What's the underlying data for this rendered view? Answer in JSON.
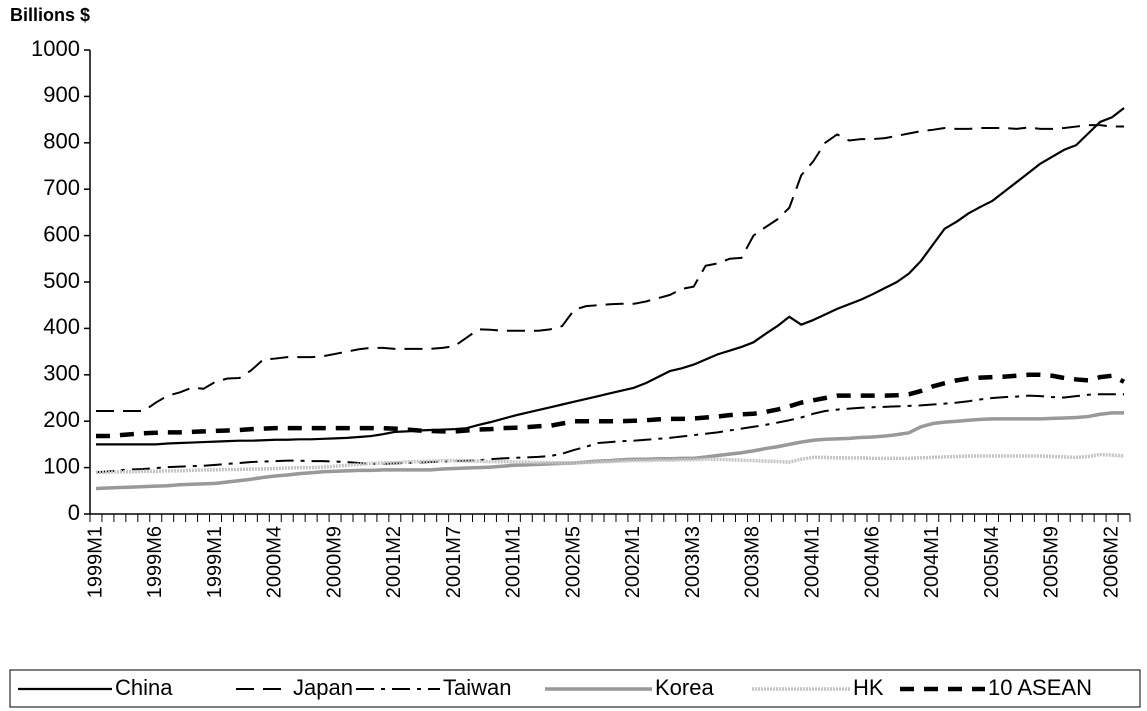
{
  "chart_data": {
    "type": "line",
    "y_axis_label": "Billions $",
    "categories": [
      "1999M1",
      null,
      null,
      null,
      null,
      "1999M6",
      null,
      null,
      null,
      null,
      "1999M1",
      null,
      null,
      null,
      null,
      "2000M4",
      null,
      null,
      null,
      null,
      "2000M9",
      null,
      null,
      null,
      null,
      "2001M2",
      null,
      null,
      null,
      null,
      "2001M7",
      null,
      null,
      null,
      null,
      "2001M1",
      null,
      null,
      null,
      null,
      "2002M5",
      null,
      null,
      null,
      null,
      "2002M1",
      null,
      null,
      null,
      null,
      "2003M3",
      null,
      null,
      null,
      null,
      "2003M8",
      null,
      null,
      null,
      null,
      "2004M1",
      null,
      null,
      null,
      null,
      "2004M6",
      null,
      null,
      null,
      null,
      "2004M1",
      null,
      null,
      null,
      null,
      "2005M4",
      null,
      null,
      null,
      null,
      "2005M9",
      null,
      null,
      null,
      null,
      "2006M2",
      null
    ],
    "ylim": [
      0,
      1000
    ],
    "yticks": [
      0,
      100,
      200,
      300,
      400,
      500,
      600,
      700,
      800,
      900,
      1000
    ],
    "series": [
      {
        "name": "China",
        "color": "#000000",
        "values": [
          150,
          150,
          150,
          150,
          150,
          150,
          152,
          153,
          154,
          155,
          156,
          157,
          158,
          158,
          159,
          160,
          160,
          161,
          161,
          162,
          163,
          164,
          166,
          168,
          172,
          177,
          178,
          180,
          181,
          182,
          183,
          185,
          192,
          198,
          205,
          212,
          218,
          224,
          230,
          236,
          242,
          248,
          254,
          260,
          266,
          272,
          282,
          295,
          308,
          314,
          322,
          333,
          344,
          352,
          360,
          370,
          388,
          405,
          425,
          408,
          418,
          430,
          442,
          452,
          462,
          474,
          487,
          500,
          518,
          545,
          580,
          615,
          630,
          648,
          662,
          675,
          695,
          715,
          735,
          755,
          770,
          785,
          795,
          820,
          845,
          855,
          875
        ]
      },
      {
        "name": "Japan",
        "color": "#000000",
        "values": [
          222,
          222,
          222,
          222,
          222,
          240,
          255,
          262,
          272,
          270,
          285,
          292,
          293,
          310,
          333,
          335,
          338,
          338,
          338,
          340,
          345,
          350,
          355,
          358,
          358,
          356,
          356,
          356,
          356,
          358,
          362,
          380,
          398,
          397,
          395,
          395,
          395,
          395,
          398,
          405,
          440,
          448,
          450,
          452,
          453,
          453,
          458,
          465,
          472,
          485,
          490,
          535,
          540,
          550,
          552,
          600,
          618,
          635,
          660,
          730,
          760,
          800,
          818,
          805,
          808,
          808,
          810,
          815,
          820,
          825,
          828,
          832,
          830,
          830,
          832,
          832,
          832,
          830,
          833,
          830,
          830,
          832,
          835,
          838,
          838,
          835,
          835
        ]
      },
      {
        "name": "Taiwan",
        "color": "#000000",
        "values": [
          90,
          92,
          94,
          96,
          97,
          99,
          101,
          102,
          103,
          104,
          106,
          108,
          110,
          112,
          113,
          114,
          115,
          115,
          114,
          114,
          113,
          112,
          110,
          108,
          108,
          109,
          110,
          111,
          112,
          113,
          114,
          115,
          116,
          118,
          120,
          121,
          122,
          123,
          125,
          130,
          138,
          145,
          153,
          155,
          157,
          158,
          160,
          162,
          164,
          167,
          170,
          173,
          176,
          180,
          184,
          188,
          192,
          197,
          202,
          208,
          216,
          222,
          225,
          227,
          229,
          230,
          231,
          232,
          233,
          234,
          236,
          238,
          240,
          243,
          247,
          250,
          252,
          253,
          255,
          254,
          252,
          251,
          254,
          257,
          258,
          258,
          258
        ]
      },
      {
        "name": "Korea",
        "color": "#999999",
        "values": [
          55,
          56,
          57,
          58,
          59,
          60,
          61,
          63,
          64,
          65,
          66,
          69,
          72,
          75,
          79,
          82,
          84,
          87,
          89,
          91,
          92,
          93,
          94,
          94,
          95,
          95,
          95,
          95,
          95,
          97,
          98,
          99,
          100,
          101,
          103,
          105,
          106,
          107,
          108,
          109,
          110,
          112,
          114,
          115,
          117,
          118,
          118,
          119,
          119,
          120,
          120,
          123,
          126,
          129,
          132,
          136,
          141,
          145,
          150,
          155,
          159,
          161,
          162,
          163,
          165,
          166,
          168,
          171,
          175,
          188,
          195,
          198,
          200,
          202,
          204,
          205,
          205,
          205,
          205,
          205,
          206,
          207,
          208,
          210,
          215,
          218,
          218
        ]
      },
      {
        "name": "HK",
        "color": "#c4c4c4",
        "values": [
          90,
          90,
          91,
          91,
          92,
          92,
          93,
          93,
          94,
          95,
          95,
          96,
          96,
          97,
          97,
          98,
          99,
          100,
          100,
          101,
          103,
          105,
          107,
          109,
          110,
          111,
          112,
          113,
          114,
          115,
          115,
          114,
          114,
          113,
          113,
          112,
          112,
          111,
          111,
          110,
          110,
          111,
          112,
          113,
          114,
          115,
          115,
          116,
          116,
          117,
          117,
          118,
          118,
          117,
          116,
          115,
          114,
          113,
          112,
          118,
          122,
          122,
          121,
          121,
          121,
          120,
          120,
          120,
          120,
          121,
          122,
          123,
          124,
          125,
          125,
          125,
          125,
          125,
          125,
          125,
          124,
          123,
          122,
          124,
          128,
          127,
          125
        ]
      },
      {
        "name": "10 ASEAN",
        "color": "#000000",
        "values": [
          168,
          168,
          170,
          172,
          174,
          175,
          176,
          176,
          177,
          178,
          179,
          180,
          181,
          183,
          184,
          185,
          185,
          185,
          185,
          185,
          185,
          185,
          185,
          185,
          185,
          184,
          182,
          180,
          179,
          178,
          178,
          180,
          182,
          183,
          185,
          186,
          187,
          189,
          190,
          195,
          200,
          200,
          200,
          200,
          200,
          201,
          202,
          204,
          205,
          205,
          206,
          208,
          210,
          213,
          215,
          216,
          220,
          225,
          232,
          240,
          245,
          250,
          255,
          255,
          255,
          255,
          255,
          256,
          258,
          265,
          275,
          282,
          288,
          292,
          294,
          295,
          296,
          298,
          300,
          300,
          298,
          293,
          290,
          288,
          295,
          298,
          285
        ]
      }
    ]
  }
}
